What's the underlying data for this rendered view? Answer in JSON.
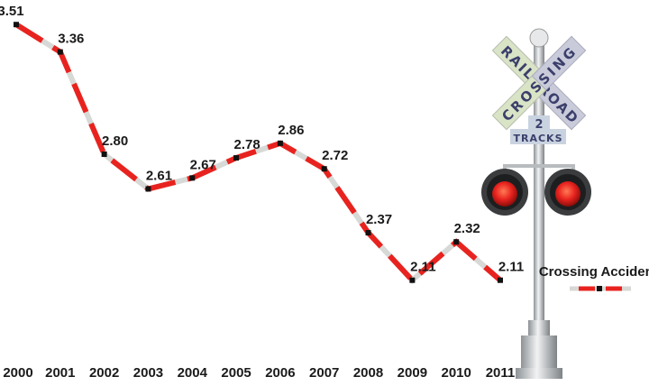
{
  "chart_data": {
    "type": "line",
    "title": "",
    "xlabel": "",
    "ylabel": "",
    "categories": [
      "2000",
      "2001",
      "2002",
      "2003",
      "2004",
      "2005",
      "2006",
      "2007",
      "2008",
      "2009",
      "2010",
      "2011"
    ],
    "series": [
      {
        "name": "Crossing Accidents",
        "values": [
          3.51,
          3.36,
          2.8,
          2.61,
          2.67,
          2.78,
          2.86,
          2.72,
          2.37,
          2.11,
          2.32,
          2.11
        ],
        "labels": [
          "3.51",
          "3.36",
          "2.80",
          "2.61",
          "2.67",
          "2.78",
          "2.86",
          "2.72",
          "2.37",
          "2.11",
          "2.32",
          "2.11"
        ]
      }
    ],
    "ylim": [
      1.6,
      3.6
    ],
    "grid": false,
    "data_labels": true,
    "legend": {
      "position": "right",
      "label": "Crossing Accidents"
    },
    "colors": {
      "line_red": "#e8231f",
      "line_gray": "#d7d9d6",
      "marker": "#111111"
    }
  },
  "illustration": {
    "sign_rail": "RAIL",
    "sign_road": "ROAD",
    "sign_crossing": "CROSSING",
    "tracks_number": "2",
    "tracks_label": "TRACKS"
  }
}
